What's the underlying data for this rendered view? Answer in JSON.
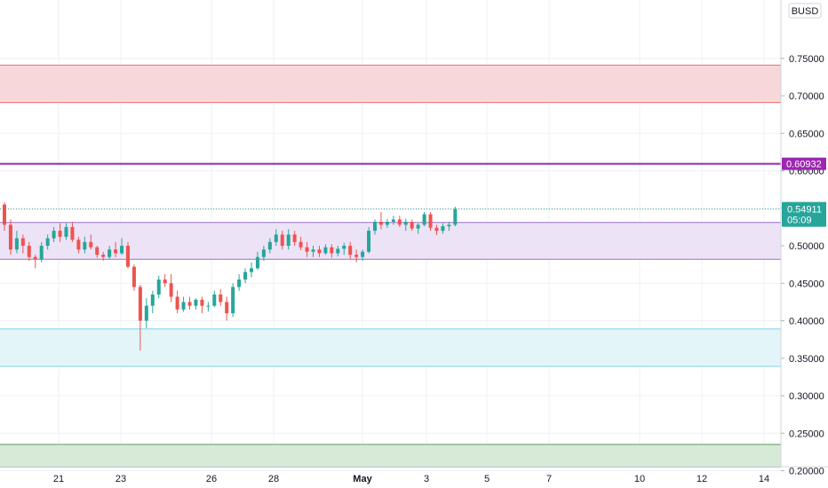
{
  "chart_data": {
    "type": "candlestick",
    "currency_label": "BUSD",
    "y_ticks": [
      "0.75000",
      "0.70000",
      "0.65000",
      "0.60000",
      "0.55000",
      "0.50000",
      "0.45000",
      "0.40000",
      "0.35000",
      "0.30000",
      "0.25000",
      "0.20000"
    ],
    "x_ticks": [
      "21",
      "23",
      "26",
      "28",
      "May",
      "3",
      "5",
      "7",
      "10",
      "12",
      "14"
    ],
    "last_price": "0.54911",
    "countdown": "05:09",
    "line_price_label": "0.60932",
    "zones": [
      {
        "name": "resistance-zone",
        "from": 0.691,
        "to": 0.741,
        "fill": "#f8d7d9",
        "stroke": "#e57373"
      },
      {
        "name": "range-zone",
        "from": 0.482,
        "to": 0.531,
        "fill": "#ece3f6",
        "stroke": "#9c6fc9"
      },
      {
        "name": "support-zone",
        "from": 0.339,
        "to": 0.389,
        "fill": "#e3f5f9",
        "stroke": "#7fd3e6"
      },
      {
        "name": "demand-zone",
        "from": 0.205,
        "to": 0.235,
        "fill": "#d7e9d7",
        "stroke": "#5aa05a"
      }
    ],
    "horizontal_line": {
      "value": 0.60932,
      "color": "#9c27b0"
    },
    "colors": {
      "up": "#26a69a",
      "down": "#ef5350",
      "grid": "#eef0f5",
      "axis_bg": "#ffffff",
      "last_price_bg": "#26a69a",
      "line_label_bg": "#9c27b0"
    },
    "candles": [
      [
        0.555,
        0.558,
        0.52,
        0.528
      ],
      [
        0.528,
        0.535,
        0.488,
        0.495
      ],
      [
        0.495,
        0.52,
        0.49,
        0.51
      ],
      [
        0.51,
        0.515,
        0.49,
        0.5
      ],
      [
        0.5,
        0.505,
        0.48,
        0.485
      ],
      [
        0.485,
        0.488,
        0.47,
        0.482
      ],
      [
        0.482,
        0.505,
        0.478,
        0.5
      ],
      [
        0.5,
        0.515,
        0.495,
        0.51
      ],
      [
        0.51,
        0.525,
        0.505,
        0.52
      ],
      [
        0.52,
        0.53,
        0.505,
        0.512
      ],
      [
        0.512,
        0.53,
        0.508,
        0.525
      ],
      [
        0.525,
        0.532,
        0.505,
        0.508
      ],
      [
        0.508,
        0.512,
        0.49,
        0.495
      ],
      [
        0.495,
        0.512,
        0.49,
        0.505
      ],
      [
        0.505,
        0.515,
        0.495,
        0.498
      ],
      [
        0.498,
        0.5,
        0.484,
        0.488
      ],
      [
        0.488,
        0.492,
        0.48,
        0.485
      ],
      [
        0.485,
        0.5,
        0.482,
        0.495
      ],
      [
        0.495,
        0.505,
        0.485,
        0.49
      ],
      [
        0.49,
        0.51,
        0.488,
        0.5
      ],
      [
        0.5,
        0.505,
        0.47,
        0.472
      ],
      [
        0.472,
        0.475,
        0.44,
        0.445
      ],
      [
        0.445,
        0.448,
        0.36,
        0.4
      ],
      [
        0.4,
        0.43,
        0.39,
        0.42
      ],
      [
        0.42,
        0.44,
        0.41,
        0.435
      ],
      [
        0.435,
        0.46,
        0.43,
        0.455
      ],
      [
        0.455,
        0.462,
        0.445,
        0.45
      ],
      [
        0.45,
        0.462,
        0.425,
        0.432
      ],
      [
        0.432,
        0.44,
        0.41,
        0.415
      ],
      [
        0.415,
        0.432,
        0.412,
        0.425
      ],
      [
        0.425,
        0.432,
        0.415,
        0.42
      ],
      [
        0.42,
        0.43,
        0.415,
        0.428
      ],
      [
        0.428,
        0.432,
        0.41,
        0.42
      ],
      [
        0.42,
        0.425,
        0.412,
        0.42
      ],
      [
        0.42,
        0.44,
        0.418,
        0.435
      ],
      [
        0.435,
        0.442,
        0.42,
        0.425
      ],
      [
        0.425,
        0.432,
        0.4,
        0.41
      ],
      [
        0.41,
        0.45,
        0.405,
        0.445
      ],
      [
        0.445,
        0.462,
        0.44,
        0.455
      ],
      [
        0.455,
        0.47,
        0.45,
        0.465
      ],
      [
        0.465,
        0.478,
        0.458,
        0.47
      ],
      [
        0.47,
        0.492,
        0.468,
        0.485
      ],
      [
        0.485,
        0.5,
        0.48,
        0.495
      ],
      [
        0.495,
        0.51,
        0.49,
        0.505
      ],
      [
        0.505,
        0.522,
        0.5,
        0.515
      ],
      [
        0.515,
        0.52,
        0.495,
        0.5
      ],
      [
        0.5,
        0.522,
        0.495,
        0.515
      ],
      [
        0.515,
        0.52,
        0.5,
        0.505
      ],
      [
        0.505,
        0.512,
        0.494,
        0.498
      ],
      [
        0.498,
        0.505,
        0.485,
        0.492
      ],
      [
        0.492,
        0.5,
        0.485,
        0.495
      ],
      [
        0.495,
        0.5,
        0.485,
        0.49
      ],
      [
        0.49,
        0.502,
        0.488,
        0.498
      ],
      [
        0.498,
        0.502,
        0.484,
        0.49
      ],
      [
        0.49,
        0.5,
        0.486,
        0.496
      ],
      [
        0.496,
        0.504,
        0.488,
        0.5
      ],
      [
        0.5,
        0.505,
        0.482,
        0.488
      ],
      [
        0.488,
        0.495,
        0.478,
        0.485
      ],
      [
        0.485,
        0.495,
        0.48,
        0.492
      ],
      [
        0.492,
        0.525,
        0.49,
        0.52
      ],
      [
        0.52,
        0.535,
        0.515,
        0.532
      ],
      [
        0.532,
        0.545,
        0.522,
        0.528
      ],
      [
        0.528,
        0.536,
        0.524,
        0.532
      ],
      [
        0.532,
        0.54,
        0.528,
        0.535
      ],
      [
        0.535,
        0.54,
        0.525,
        0.528
      ],
      [
        0.528,
        0.536,
        0.52,
        0.532
      ],
      [
        0.532,
        0.535,
        0.52,
        0.523
      ],
      [
        0.523,
        0.53,
        0.516,
        0.528
      ],
      [
        0.528,
        0.545,
        0.526,
        0.542
      ],
      [
        0.542,
        0.545,
        0.52,
        0.524
      ],
      [
        0.524,
        0.528,
        0.514,
        0.52
      ],
      [
        0.52,
        0.53,
        0.516,
        0.526
      ],
      [
        0.526,
        0.532,
        0.52,
        0.528
      ],
      [
        0.528,
        0.552,
        0.526,
        0.549
      ]
    ]
  }
}
